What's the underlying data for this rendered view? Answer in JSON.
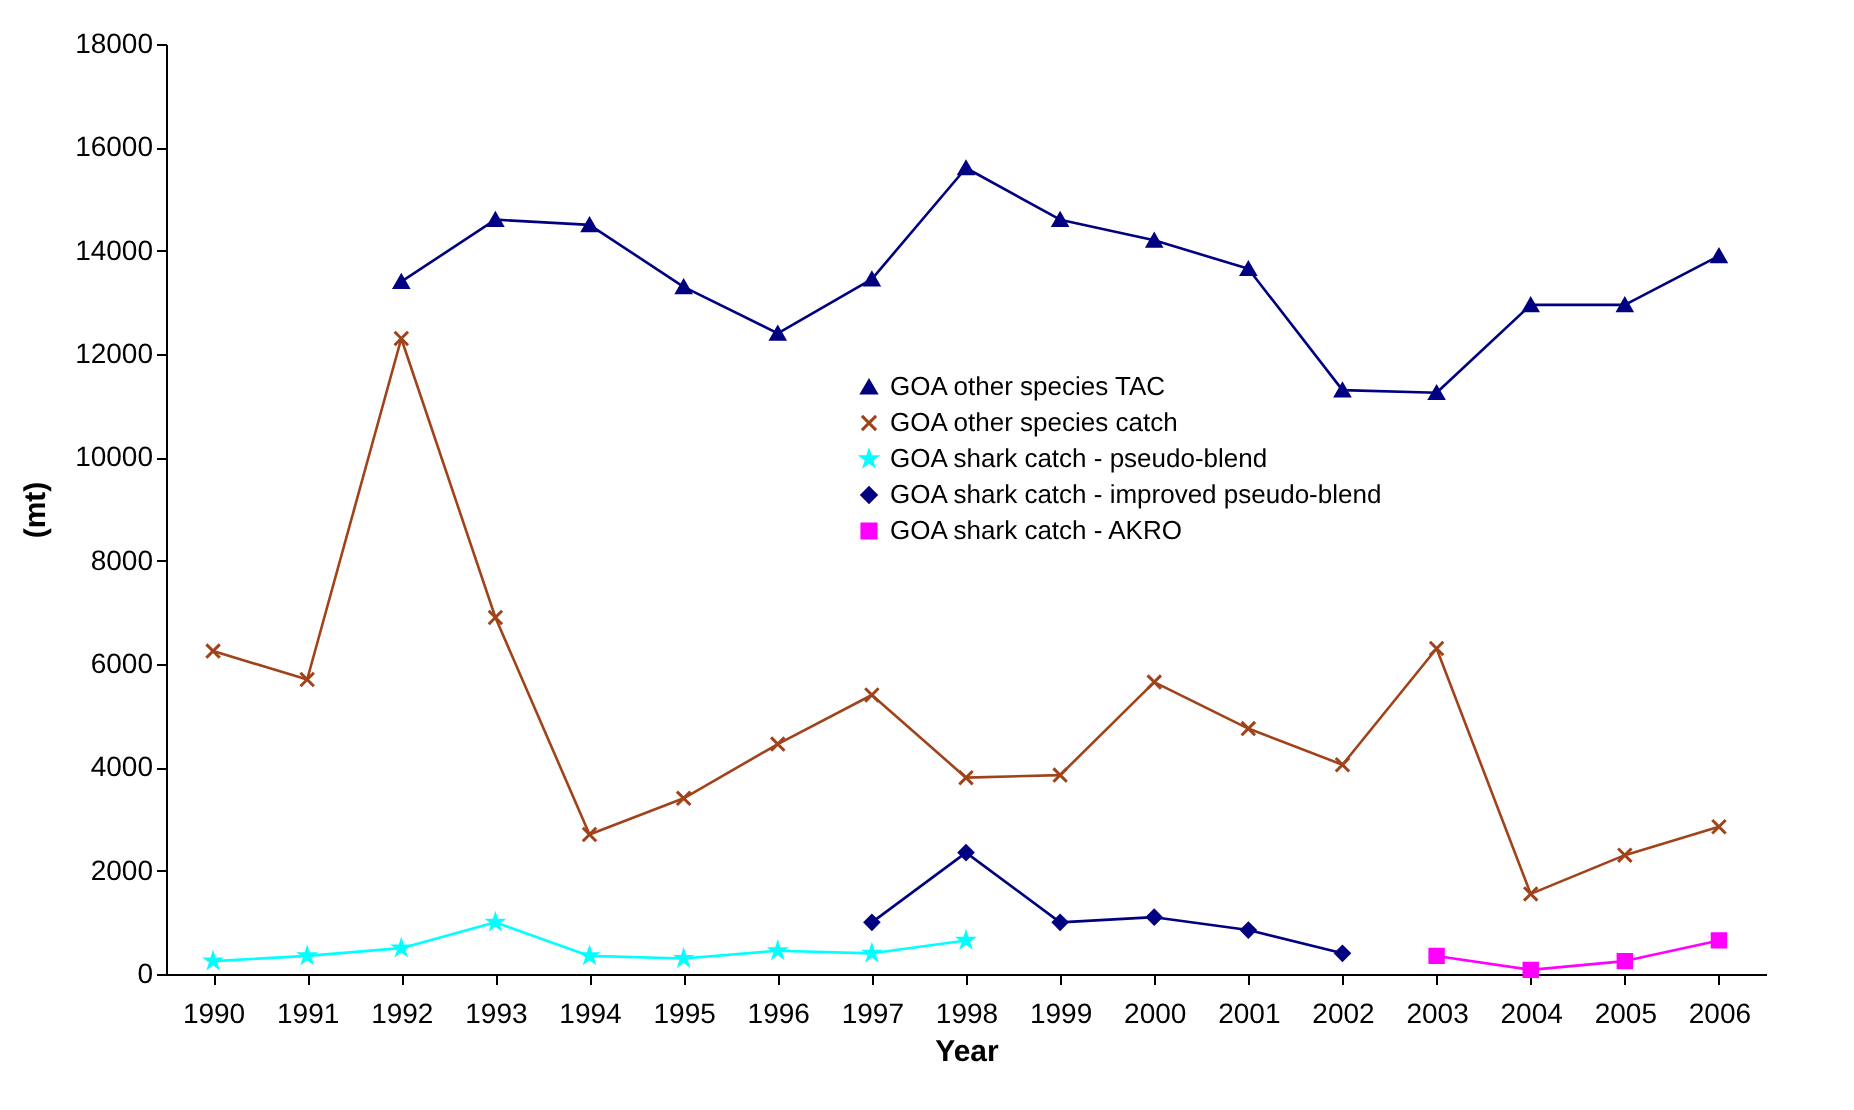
{
  "chart_data": {
    "type": "line",
    "xlabel": "Year",
    "ylabel": "(mt)",
    "categories": [
      "1990",
      "1991",
      "1992",
      "1993",
      "1994",
      "1995",
      "1996",
      "1997",
      "1998",
      "1999",
      "2000",
      "2001",
      "2002",
      "2003",
      "2004",
      "2005",
      "2006"
    ],
    "series": [
      {
        "name": "GOA other species TAC",
        "color": "#000080",
        "marker": "triangle",
        "values": [
          null,
          null,
          13400,
          14600,
          14500,
          13300,
          12400,
          13450,
          15600,
          14600,
          14200,
          13650,
          11300,
          11250,
          12950,
          12950,
          13900
        ]
      },
      {
        "name": "GOA other species catch",
        "color": "#a0431a",
        "marker": "cross",
        "values": [
          6250,
          5700,
          12300,
          6900,
          2700,
          3400,
          4450,
          5400,
          3800,
          3850,
          5650,
          4750,
          4050,
          6300,
          1550,
          2300,
          2850
        ]
      },
      {
        "name": "GOA shark catch - pseudo-blend",
        "color": "#00ffff",
        "marker": "star",
        "values": [
          250,
          350,
          500,
          1000,
          350,
          300,
          450,
          400,
          650,
          null,
          null,
          null,
          null,
          null,
          null,
          null,
          null
        ]
      },
      {
        "name": "GOA shark catch - improved pseudo-blend",
        "color": "#000080",
        "marker": "diamond",
        "values": [
          null,
          null,
          null,
          null,
          null,
          null,
          null,
          1000,
          2350,
          1000,
          1100,
          850,
          400,
          null,
          null,
          null,
          null
        ]
      },
      {
        "name": "GOA shark catch - AKRO",
        "color": "#ff00ff",
        "marker": "square",
        "values": [
          null,
          null,
          null,
          null,
          null,
          null,
          null,
          null,
          null,
          null,
          null,
          null,
          null,
          350,
          80,
          250,
          650
        ]
      }
    ],
    "ylim": [
      0,
      18000
    ],
    "yticks": [
      0,
      2000,
      4000,
      6000,
      8000,
      10000,
      12000,
      14000,
      16000,
      18000
    ],
    "grid": false,
    "legend": "center"
  }
}
